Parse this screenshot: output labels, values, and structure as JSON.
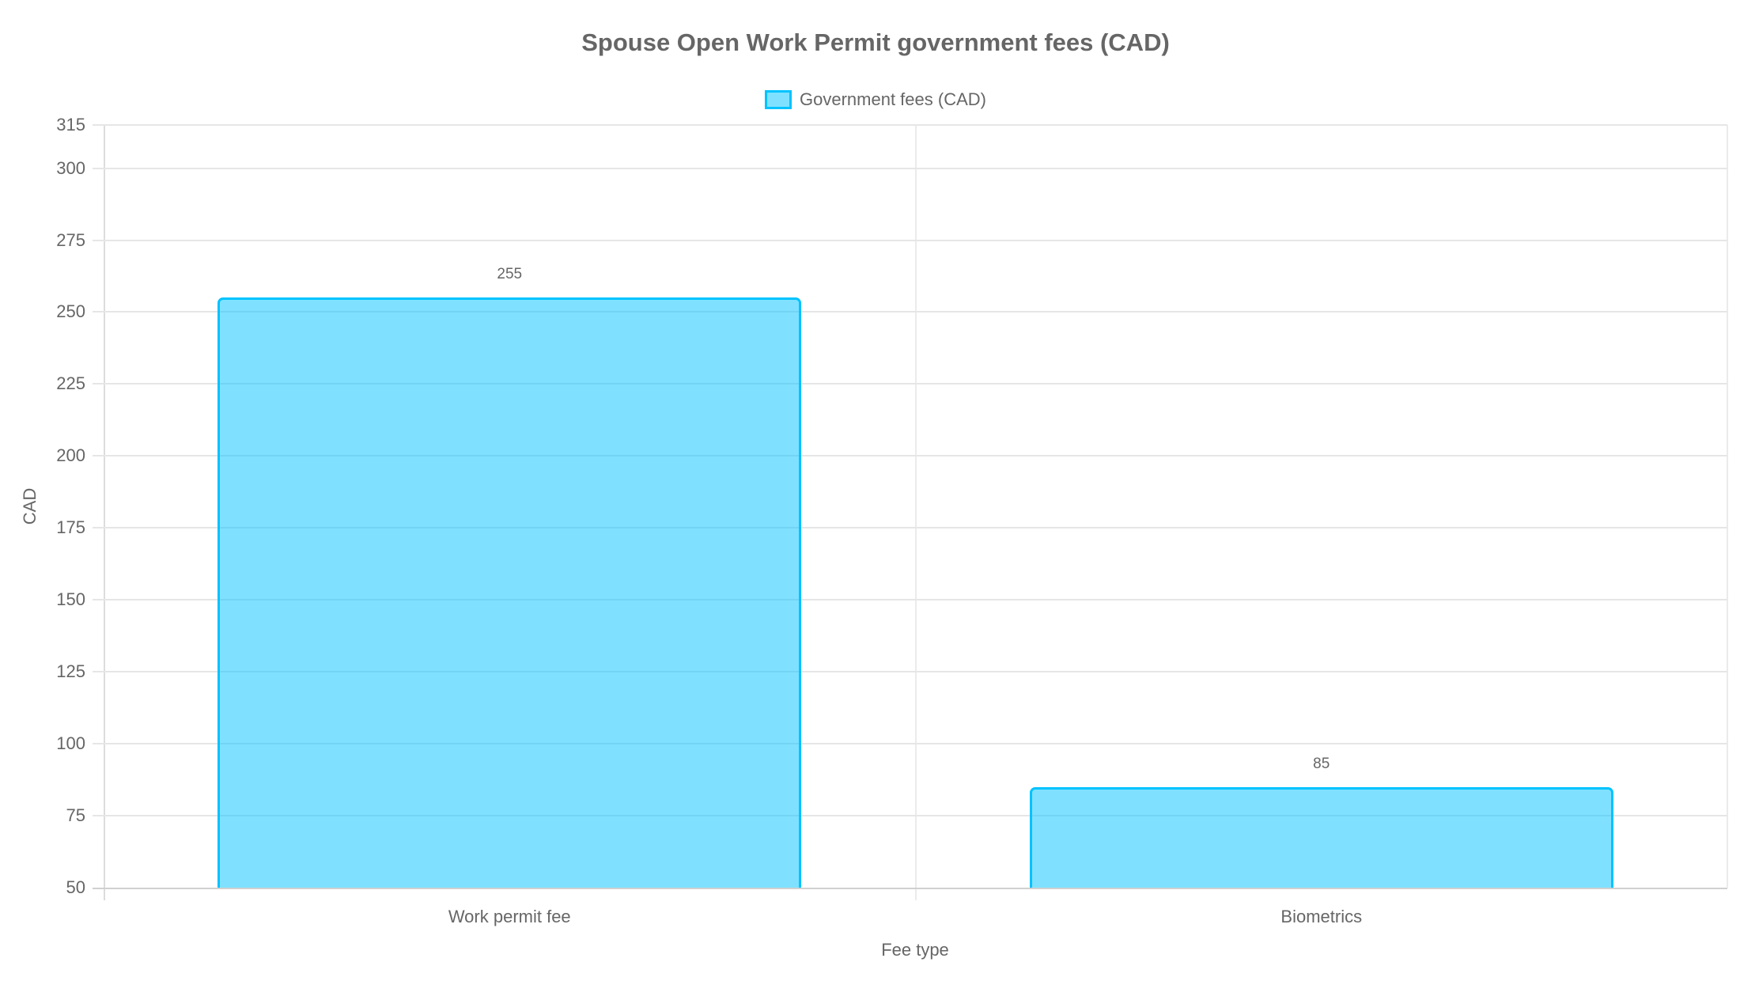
{
  "chart_data": {
    "type": "bar",
    "title": "Spouse Open Work Permit government fees (CAD)",
    "categories": [
      "Work permit fee",
      "Biometrics"
    ],
    "series": [
      {
        "name": "Government fees (CAD)",
        "values": [
          255,
          85
        ],
        "color": "#00c3ff",
        "fill": "rgba(0,195,255,0.5)"
      }
    ],
    "data_labels": [
      "255",
      "85"
    ],
    "xlabel": "Fee type",
    "ylabel": "CAD",
    "ylim": [
      50,
      315
    ],
    "yticks": [
      315,
      300,
      275,
      250,
      225,
      200,
      175,
      150,
      125,
      100,
      75,
      50
    ],
    "grid": true,
    "legend_position": "top"
  },
  "colors": {
    "bar_border": "#00c3ff",
    "text": "#666666",
    "grid": "#e6e6e6"
  }
}
